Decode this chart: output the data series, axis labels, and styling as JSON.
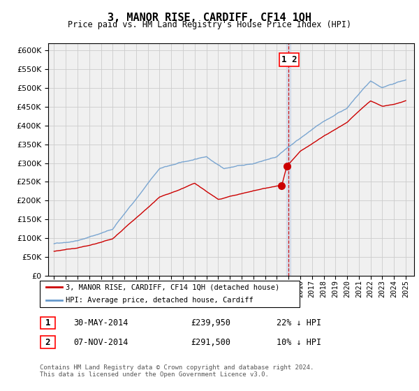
{
  "title": "3, MANOR RISE, CARDIFF, CF14 1QH",
  "subtitle": "Price paid vs. HM Land Registry's House Price Index (HPI)",
  "legend_line1": "3, MANOR RISE, CARDIFF, CF14 1QH (detached house)",
  "legend_line2": "HPI: Average price, detached house, Cardiff",
  "transaction1_label": "1",
  "transaction1_date": "30-MAY-2014",
  "transaction1_price": "£239,950",
  "transaction1_hpi": "22% ↓ HPI",
  "transaction2_label": "2",
  "transaction2_date": "07-NOV-2014",
  "transaction2_price": "£291,500",
  "transaction2_hpi": "10% ↓ HPI",
  "footer": "Contains HM Land Registry data © Crown copyright and database right 2024.\nThis data is licensed under the Open Government Licence v3.0.",
  "hpi_color": "#6699cc",
  "price_color": "#cc0000",
  "vline_color": "#cc0000",
  "vline_fill": "#d0d8e8",
  "grid_color": "#cccccc",
  "background_color": "#f0f0f0",
  "ylim_min": 0,
  "ylim_max": 620000,
  "sale_date1_year": 2014.42,
  "sale_price1": 239950,
  "sale_date2_year": 2014.85,
  "sale_price2": 291500,
  "vline_x": 2015.0
}
